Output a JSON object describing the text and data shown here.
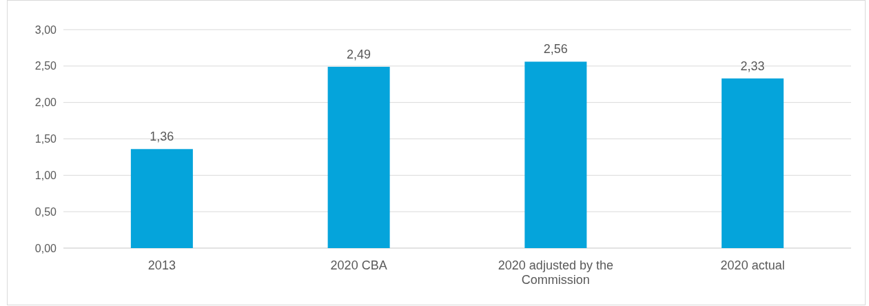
{
  "chart_data": {
    "type": "bar",
    "categories": [
      "2013",
      "2020 CBA",
      "2020 adjusted by the Commission",
      "2020 actual"
    ],
    "values": [
      1.36,
      2.49,
      2.56,
      2.33
    ],
    "color": "#05a4db",
    "value_labels": [
      "1,36",
      "2,49",
      "2,56",
      "2,33"
    ],
    "ylim": [
      0,
      3
    ],
    "yticks": [
      {
        "value": 0,
        "label": "0,00"
      },
      {
        "value": 0.5,
        "label": "0,50"
      },
      {
        "value": 1,
        "label": "1,00"
      },
      {
        "value": 1.5,
        "label": "1,50"
      },
      {
        "value": 2,
        "label": "2,00"
      },
      {
        "value": 2.5,
        "label": "2,50"
      },
      {
        "value": 3,
        "label": "3,00"
      }
    ],
    "grid": "y"
  }
}
